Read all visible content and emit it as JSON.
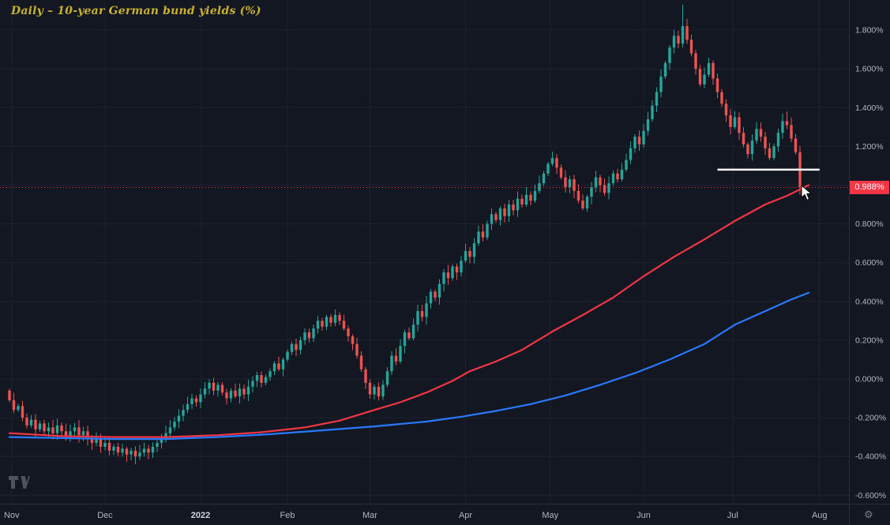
{
  "title": "Daily – 10-year German bund yields (%)",
  "last_price_label": "0.988%",
  "icons": {
    "gear": "⚙"
  },
  "colors": {
    "background": "#131722",
    "up": "#26a69a",
    "down": "#ef5350",
    "ma_fast": "#f23645",
    "ma_slow": "#2979ff",
    "badge": "#f23645",
    "title": "#c9b230",
    "axis_text": "#b2b5be",
    "axis_text_emph": "#d1d4dc",
    "grid": "#1e2230",
    "border": "#2a2e39",
    "drawing_line": "#ffffff"
  },
  "chart_data": {
    "type": "candlestick",
    "title": "Daily – 10-year German bund yields (%)",
    "unit": "%",
    "last_price": 0.988,
    "y_axis": {
      "min": -0.6,
      "max": 1.8,
      "step": 0.2,
      "hidden_tick": 1.0,
      "tick_format": "3-decimals-percent"
    },
    "x_axis": {
      "labels": [
        {
          "label": "Nov",
          "i": 0.5
        },
        {
          "label": "Dec",
          "i": 22
        },
        {
          "label": "2022",
          "i": 44,
          "emph": true
        },
        {
          "label": "Feb",
          "i": 64
        },
        {
          "label": "Mar",
          "i": 83
        },
        {
          "label": "Apr",
          "i": 105
        },
        {
          "label": "May",
          "i": 124.5
        },
        {
          "label": "Jun",
          "i": 146
        },
        {
          "label": "Jul",
          "i": 166.5
        },
        {
          "label": "Aug",
          "i": 186.5
        }
      ]
    },
    "closes": [
      -0.11,
      -0.16,
      -0.14,
      -0.2,
      -0.24,
      -0.21,
      -0.26,
      -0.23,
      -0.27,
      -0.25,
      -0.28,
      -0.24,
      -0.27,
      -0.3,
      -0.27,
      -0.25,
      -0.29,
      -0.27,
      -0.31,
      -0.33,
      -0.31,
      -0.35,
      -0.33,
      -0.37,
      -0.35,
      -0.38,
      -0.36,
      -0.39,
      -0.37,
      -0.4,
      -0.38,
      -0.36,
      -0.38,
      -0.35,
      -0.33,
      -0.31,
      -0.28,
      -0.25,
      -0.22,
      -0.19,
      -0.16,
      -0.13,
      -0.1,
      -0.12,
      -0.08,
      -0.05,
      -0.02,
      -0.06,
      -0.03,
      -0.07,
      -0.1,
      -0.06,
      -0.09,
      -0.05,
      -0.08,
      -0.04,
      -0.01,
      0.02,
      -0.02,
      0.01,
      0.04,
      0.08,
      0.05,
      0.1,
      0.14,
      0.18,
      0.15,
      0.2,
      0.24,
      0.21,
      0.26,
      0.3,
      0.27,
      0.32,
      0.29,
      0.33,
      0.3,
      0.26,
      0.22,
      0.18,
      0.12,
      0.05,
      -0.02,
      -0.08,
      -0.04,
      -0.09,
      -0.03,
      0.04,
      0.12,
      0.09,
      0.17,
      0.24,
      0.21,
      0.28,
      0.35,
      0.32,
      0.39,
      0.45,
      0.42,
      0.49,
      0.55,
      0.52,
      0.58,
      0.55,
      0.61,
      0.66,
      0.63,
      0.7,
      0.76,
      0.73,
      0.8,
      0.85,
      0.82,
      0.88,
      0.84,
      0.9,
      0.87,
      0.93,
      0.9,
      0.95,
      0.92,
      0.97,
      1.01,
      1.06,
      1.11,
      1.14,
      1.09,
      1.04,
      0.99,
      1.03,
      0.97,
      0.92,
      0.88,
      0.94,
      0.99,
      1.04,
      1.0,
      0.96,
      1.01,
      1.06,
      1.03,
      1.08,
      1.13,
      1.19,
      1.25,
      1.21,
      1.28,
      1.34,
      1.41,
      1.48,
      1.56,
      1.63,
      1.71,
      1.77,
      1.73,
      1.82,
      1.75,
      1.68,
      1.6,
      1.52,
      1.57,
      1.63,
      1.55,
      1.48,
      1.42,
      1.36,
      1.3,
      1.35,
      1.27,
      1.21,
      1.16,
      1.23,
      1.29,
      1.25,
      1.19,
      1.14,
      1.2,
      1.27,
      1.33,
      1.31,
      1.24,
      1.17,
      0.988
    ],
    "high_overrides": {
      "155": 1.93,
      "179": 1.38
    },
    "low_overrides": {
      "182": 0.95
    },
    "series_overlays": [
      {
        "name": "ma-fast",
        "color": "#f23645",
        "points": [
          [
            0,
            -0.28
          ],
          [
            12,
            -0.295
          ],
          [
            24,
            -0.3
          ],
          [
            36,
            -0.3
          ],
          [
            48,
            -0.29
          ],
          [
            58,
            -0.275
          ],
          [
            68,
            -0.25
          ],
          [
            76,
            -0.215
          ],
          [
            84,
            -0.16
          ],
          [
            90,
            -0.12
          ],
          [
            96,
            -0.07
          ],
          [
            102,
            -0.01
          ],
          [
            106,
            0.04
          ],
          [
            112,
            0.09
          ],
          [
            118,
            0.15
          ],
          [
            125,
            0.245
          ],
          [
            132,
            0.33
          ],
          [
            139,
            0.42
          ],
          [
            146,
            0.53
          ],
          [
            153,
            0.63
          ],
          [
            160,
            0.72
          ],
          [
            167,
            0.815
          ],
          [
            174,
            0.9
          ],
          [
            179,
            0.945
          ],
          [
            184,
            1.0
          ]
        ]
      },
      {
        "name": "ma-slow",
        "color": "#2979ff",
        "points": [
          [
            0,
            -0.3
          ],
          [
            12,
            -0.305
          ],
          [
            24,
            -0.31
          ],
          [
            36,
            -0.31
          ],
          [
            48,
            -0.3
          ],
          [
            60,
            -0.285
          ],
          [
            72,
            -0.265
          ],
          [
            84,
            -0.245
          ],
          [
            96,
            -0.22
          ],
          [
            104,
            -0.195
          ],
          [
            112,
            -0.165
          ],
          [
            120,
            -0.13
          ],
          [
            128,
            -0.085
          ],
          [
            136,
            -0.03
          ],
          [
            144,
            0.03
          ],
          [
            152,
            0.1
          ],
          [
            160,
            0.18
          ],
          [
            167,
            0.28
          ],
          [
            174,
            0.35
          ],
          [
            180,
            0.41
          ],
          [
            184,
            0.445
          ]
        ]
      }
    ],
    "drawings": [
      {
        "type": "horizontal-line",
        "value": 1.08,
        "i1": 163,
        "i2": 186.5,
        "color": "#ffffff"
      },
      {
        "type": "dotted-price-line",
        "value": 0.988,
        "color": "#f23645"
      }
    ]
  }
}
